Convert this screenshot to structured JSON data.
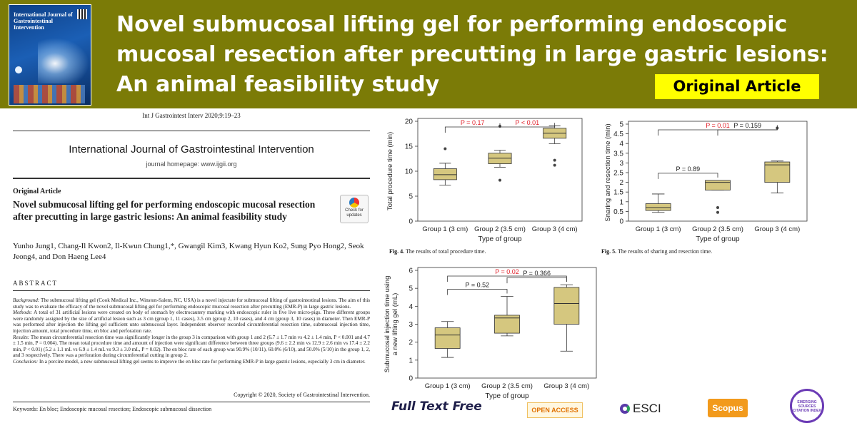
{
  "banner": {
    "title": "Novel submucosal lifting gel for performing endoscopic mucosal resection after precutting in large gastric lesions: An animal feasibility study",
    "badge": "Original Article",
    "cover_title": "International Journal of Gastrointestinal Intervention"
  },
  "paper": {
    "citation": "Int J Gastrointest Interv 2020;9:19–23",
    "journal_name": "International Journal of Gastrointestinal Intervention",
    "journal_home": "journal homepage: www.ijgii.org",
    "article_type": "Original Article",
    "title": "Novel submucosal lifting gel for performing endoscopic mucosal resection after precutting in large gastric lesions: An animal feasibility study",
    "check_updates": "Check for updates",
    "authors": "Yunho Jung1, Chang-Il Kwon2, Il-Kwun Chung1,*, Gwangil Kim3, Kwang Hyun Ko2, Sung Pyo Hong2, Seok Jeong4, and Don Haeng Lee4",
    "abstract_heading": "ABSTRACT",
    "abstract": [
      {
        "label": "Background:",
        "text": "The submucosal lifting gel (Cook Medical Inc., Winston-Salem, NC, USA) is a novel injectate for submucosal lifting of gastrointestinal lesions. The aim of this study was to evaluate the efficacy of the novel submucosal lifting gel for performing endoscopic mucosal resection after precutting (EMR-P) in large gastric lesions."
      },
      {
        "label": "Methods:",
        "text": "A total of 31 artificial lesions were created on body of stomach by electrocautery marking with endoscopic ruler in five live micro-pigs. Three different groups were randomly assigned by the size of artificial lesion such as 3 cm (group 1, 11 cases), 3.5 cm (group 2, 10 cases), and 4 cm (group 3, 10 cases) in diameter. Then EMR-P was performed after injection the lifting gel sufficient unto submucosal layer. Independent observer recorded circumferential resection time, submucosal injection time, injection amount, total procedure time, en bloc and perforation rate."
      },
      {
        "label": "Results:",
        "text": "The mean circumferential resection time was significantly longer in the group 3 in comparison with group 1 and 2 (6.7 ± 1.7 min vs 4.2 ± 1.4 min, P < 0.001 and 4.7 ± 1.5 min, P = 0.004). The mean total procedure time and amount of injection were significant difference between three groups (9.6 ± 2.2 min vs 12.9 ± 2.6 min vs 17.4 ± 2.2 min, P < 0.01) (5.2 ± 1.1 mL vs 6.9 ± 1.4 mL vs 9.3 ± 3.0 mL, P = 0.02). The en bloc rate of each group was 90.9% (10/11), 60.0% (6/10), and 50.0% (5/10) in the group 1, 2, and 3 respectively. There was a perforation during circumferential cutting in group 2."
      },
      {
        "label": "Conclusion:",
        "text": "In a porcine model, a new submucosal lifting gel seems to improve the en bloc rate for performing EMR-P in large gastric lesions, especially 3 cm in diameter."
      }
    ],
    "copyright": "Copyright © 2020, Society of Gastrointestinal Intervention.",
    "keywords": "Keywords: En bloc; Endoscopic mucosal resection; Endoscopic submucosal dissection"
  },
  "captions": {
    "fig4_label": "Fig. 4.",
    "fig4_text": "The results of total procedure time.",
    "fig5_label": "Fig. 5.",
    "fig5_text": "The results of sharing and resection time."
  },
  "chart_data": [
    {
      "type": "box",
      "ylabel": "Total procedure time (min)",
      "xlabel": "Type of group",
      "ylim": [
        0,
        20
      ],
      "yticks": [
        0,
        5,
        10,
        15,
        20
      ],
      "categories": [
        "Group 1 (3 cm)",
        "Group 2 (3.5 cm)",
        "Group 3 (4 cm)"
      ],
      "boxes": [
        {
          "low": 7.2,
          "q1": 8.3,
          "median": 9.3,
          "q3": 10.5,
          "high": 11.6,
          "outliers": [
            14.5
          ]
        },
        {
          "low": 10.8,
          "q1": 11.5,
          "median": 12.6,
          "q3": 13.6,
          "high": 14.2,
          "outliers": [
            19.0,
            8.2
          ]
        },
        {
          "low": 15.5,
          "q1": 16.6,
          "median": 17.6,
          "q3": 18.6,
          "high": 19.1,
          "outliers": [
            12.2,
            11.2
          ]
        }
      ],
      "annotations": [
        {
          "from": 0,
          "to": 1,
          "text": "P = 0.17"
        },
        {
          "from": 1,
          "to": 2,
          "text": "P < 0.01"
        }
      ]
    },
    {
      "type": "box",
      "ylabel": "Snaring and resection time (min)",
      "xlabel": "Type of group",
      "ylim": [
        0,
        5
      ],
      "yticks": [
        0,
        0.5,
        1,
        1.5,
        2,
        2.5,
        3,
        3.5,
        4,
        4.5,
        5
      ],
      "categories": [
        "Group 1 (3 cm)",
        "Group 2 (3.5 cm)",
        "Group 3 (4 cm)"
      ],
      "boxes": [
        {
          "low": 0.45,
          "q1": 0.55,
          "median": 0.7,
          "q3": 0.9,
          "high": 1.4,
          "outliers": []
        },
        {
          "low": 1.6,
          "q1": 1.6,
          "median": 2.0,
          "q3": 2.1,
          "high": 2.1,
          "outliers": [
            0.7,
            0.45
          ]
        },
        {
          "low": 1.45,
          "q1": 2.0,
          "median": 2.9,
          "q3": 3.05,
          "high": 3.1,
          "outliers": [
            4.8
          ]
        }
      ],
      "annotations": [
        {
          "from": 0,
          "to": 2,
          "text": "P = 0.01"
        },
        {
          "from": 0,
          "to": 1,
          "text": "P = 0.89"
        },
        {
          "from": 1,
          "to": 2,
          "text": "P = 0.159"
        }
      ]
    },
    {
      "type": "box",
      "ylabel": "Submucosal injection time using a new lifting gel (mL)",
      "xlabel": "Type of group",
      "ylim": [
        0,
        6
      ],
      "yticks": [
        0,
        1,
        2,
        3,
        4,
        5,
        6
      ],
      "categories": [
        "Group 1 (3 cm)",
        "Group 2 (3.5 cm)",
        "Group 3 (4 cm)"
      ],
      "boxes": [
        {
          "low": 1.15,
          "q1": 1.65,
          "median": 2.4,
          "q3": 2.8,
          "high": 3.15,
          "outliers": []
        },
        {
          "low": 2.35,
          "q1": 2.5,
          "median": 3.35,
          "q3": 3.5,
          "high": 4.55,
          "outliers": []
        },
        {
          "low": 1.5,
          "q1": 3.0,
          "median": 4.15,
          "q3": 5.05,
          "high": 5.2,
          "outliers": []
        }
      ],
      "annotations": [
        {
          "from": 0,
          "to": 2,
          "text": "P = 0.02"
        },
        {
          "from": 0,
          "to": 1,
          "text": "P = 0.52"
        },
        {
          "from": 1,
          "to": 2,
          "text": "P = 0.366"
        }
      ]
    }
  ],
  "footer": {
    "full_text": "Full Text Free",
    "open_access": "OPEN ACCESS",
    "esci": "ESCI",
    "scopus": "Scopus",
    "seal": "EMERGING SOURCES CITATION INDEX"
  },
  "colors": {
    "banner_bg": "#7b7b07",
    "badge_bg": "#ffff00",
    "box_fill": "#d5c77f",
    "pvalue": "#e0202a"
  }
}
